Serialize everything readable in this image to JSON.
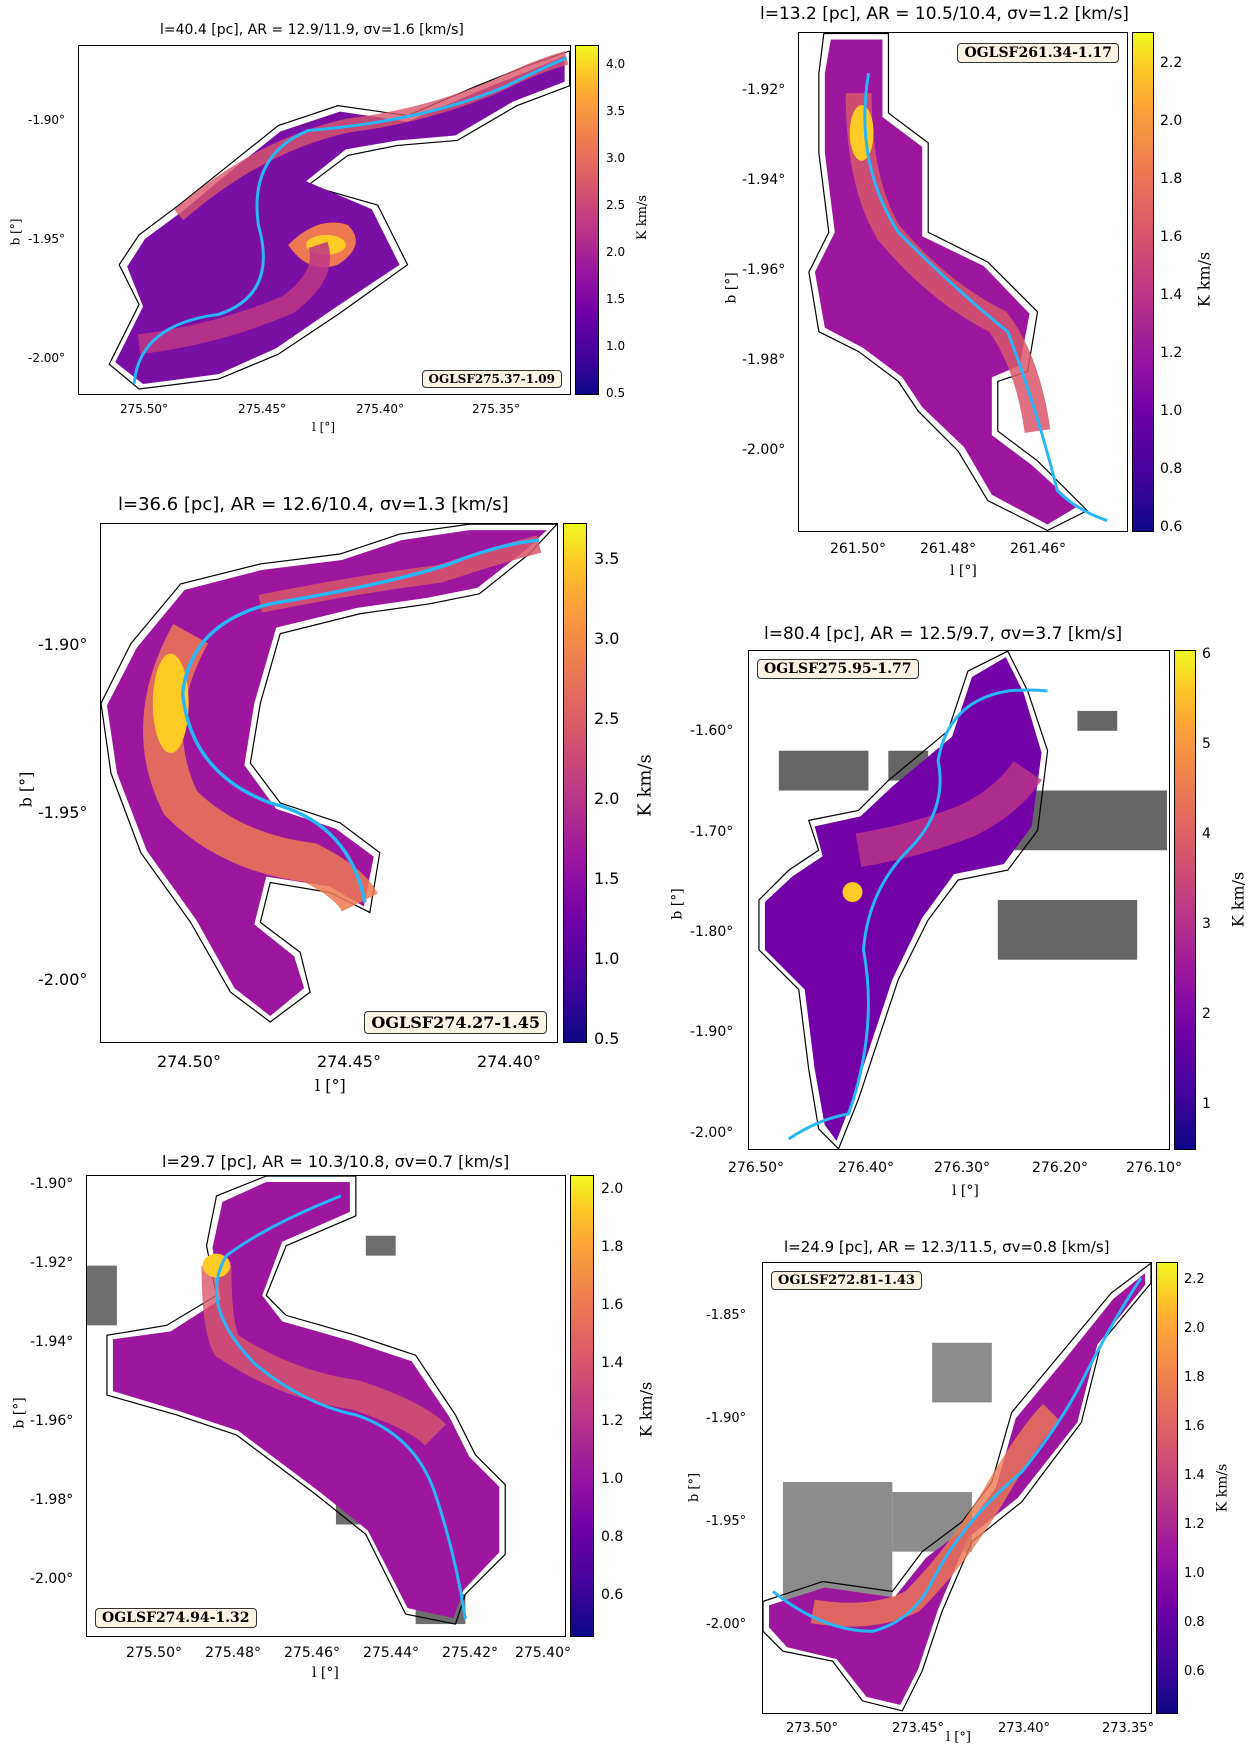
{
  "colors": {
    "colormap": [
      "#0d0887",
      "#46039f",
      "#7201a8",
      "#9c179e",
      "#bd3786",
      "#d8576b",
      "#ed7953",
      "#fb9f3a",
      "#fdca26",
      "#f0f921"
    ],
    "spine": "#29b6f6",
    "background_emission": "#555555",
    "label_box": "#fbf3e4"
  },
  "panels": [
    {
      "id": "p1",
      "title": "l=40.4 [pc], AR = 12.9/11.9, σv=1.6 [km/s]",
      "source_label": "OGLSF275.37-1.09",
      "xlabel": "l [°]",
      "ylabel": "b [°]",
      "cbar_label": "K km/s",
      "xticks": [
        "275.50°",
        "275.45°",
        "275.40°",
        "275.35°"
      ],
      "yticks": [
        "-1.90°",
        "-1.95°",
        "-2.00°"
      ],
      "cbar_ticks": [
        "4.0",
        "3.5",
        "3.0",
        "2.5",
        "2.0",
        "1.5",
        "1.0",
        "0.5"
      ]
    },
    {
      "id": "p2",
      "title": "l=13.2 [pc], AR = 10.5/10.4, σv=1.2 [km/s]",
      "source_label": "OGLSF261.34-1.17",
      "xlabel": "l [°]",
      "ylabel": "b [°]",
      "cbar_label": "K km/s",
      "xticks": [
        "261.50°",
        "261.48°",
        "261.46°"
      ],
      "yticks": [
        "-1.92°",
        "-1.94°",
        "-1.96°",
        "-1.98°",
        "-2.00°"
      ],
      "cbar_ticks": [
        "2.2",
        "2.0",
        "1.8",
        "1.6",
        "1.4",
        "1.2",
        "1.0",
        "0.8",
        "0.6"
      ]
    },
    {
      "id": "p3",
      "title": "l=36.6 [pc], AR = 12.6/10.4, σv=1.3 [km/s]",
      "source_label": "OGLSF274.27-1.45",
      "xlabel": "l [°]",
      "ylabel": "b [°]",
      "cbar_label": "K km/s",
      "xticks": [
        "274.50°",
        "274.45°",
        "274.40°"
      ],
      "yticks": [
        "-1.90°",
        "-1.95°",
        "-2.00°"
      ],
      "cbar_ticks": [
        "3.5",
        "3.0",
        "2.5",
        "2.0",
        "1.5",
        "1.0",
        "0.5"
      ]
    },
    {
      "id": "p4",
      "title": "l=80.4 [pc], AR = 12.5/9.7, σv=3.7 [km/s]",
      "source_label": "OGLSF275.95-1.77",
      "xlabel": "l [°]",
      "ylabel": "b [°]",
      "cbar_label": "K km/s",
      "xticks": [
        "276.50°",
        "276.40°",
        "276.30°",
        "276.20°",
        "276.10°"
      ],
      "yticks": [
        "-1.60°",
        "-1.70°",
        "-1.80°",
        "-1.90°",
        "-2.00°"
      ],
      "cbar_ticks": [
        "6",
        "5",
        "4",
        "3",
        "2",
        "1"
      ]
    },
    {
      "id": "p5",
      "title": "l=29.7 [pc], AR = 10.3/10.8, σv=0.7 [km/s]",
      "source_label": "OGLSF274.94-1.32",
      "xlabel": "l [°]",
      "ylabel": "b [°]",
      "cbar_label": "K km/s",
      "xticks": [
        "275.50°",
        "275.48°",
        "275.46°",
        "275.44°",
        "275.42°",
        "275.40°"
      ],
      "yticks": [
        "-1.90°",
        "-1.92°",
        "-1.94°",
        "-1.96°",
        "-1.98°",
        "-2.00°"
      ],
      "cbar_ticks": [
        "2.0",
        "1.8",
        "1.6",
        "1.4",
        "1.2",
        "1.0",
        "0.8",
        "0.6"
      ]
    },
    {
      "id": "p6",
      "title": "l=24.9 [pc], AR = 12.3/11.5, σv=0.8 [km/s]",
      "source_label": "OGLSF272.81-1.43",
      "xlabel": "l [°]",
      "ylabel": "b [°]",
      "cbar_label": "K km/s",
      "xticks": [
        "273.50°",
        "273.45°",
        "273.40°",
        "273.35°"
      ],
      "yticks": [
        "-1.85°",
        "-1.90°",
        "-1.95°",
        "-2.00°"
      ],
      "cbar_ticks": [
        "2.2",
        "2.0",
        "1.8",
        "1.6",
        "1.4",
        "1.2",
        "1.0",
        "0.8",
        "0.6"
      ]
    }
  ]
}
